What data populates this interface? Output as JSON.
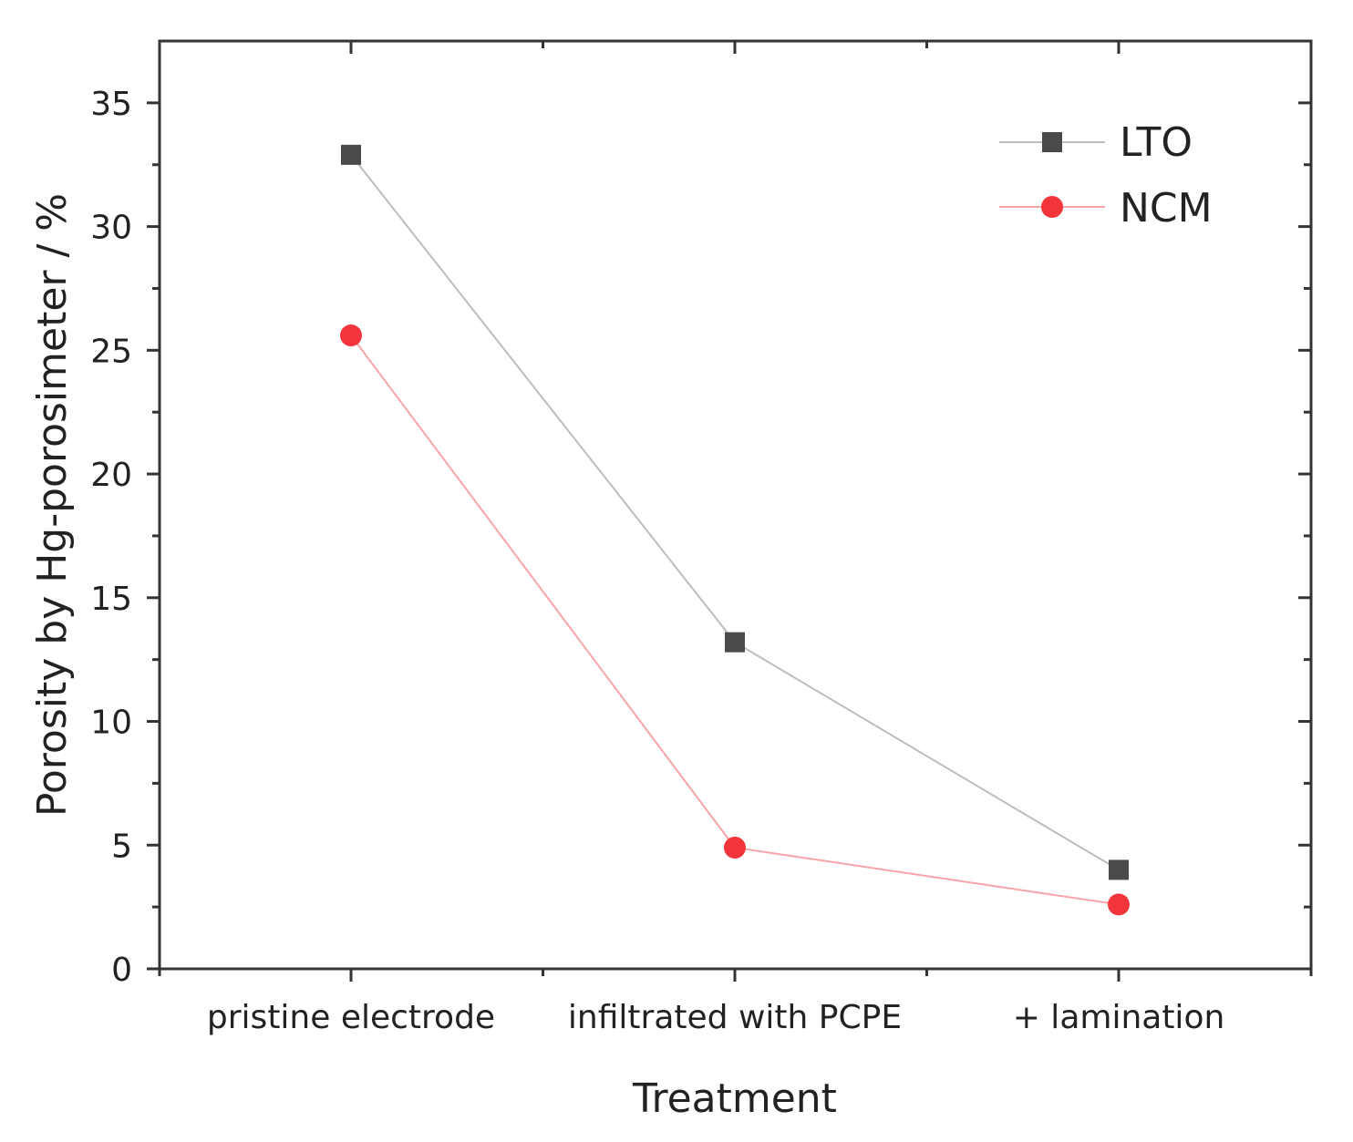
{
  "chart_data": {
    "type": "line",
    "title": "",
    "xlabel": "Treatment",
    "ylabel": "Porosity by Hg-porosimeter / %",
    "categories": [
      "pristine electrode",
      "infiltrated with PCPE",
      "+ lamination"
    ],
    "ylim": [
      0,
      37.5
    ],
    "yticks": [
      "0",
      "5",
      "10",
      "15",
      "20",
      "25",
      "30",
      "35"
    ],
    "grid": false,
    "legend_position": "top-right",
    "series": [
      {
        "name": "LTO",
        "marker": "square",
        "color": "#4a4a4a",
        "line_color": "#bdbdbd",
        "values": [
          32.9,
          13.2,
          4.0
        ]
      },
      {
        "name": "NCM",
        "marker": "circle",
        "color": "#f2353a",
        "line_color": "#f7a5a8",
        "values": [
          25.6,
          4.9,
          2.6
        ]
      }
    ]
  }
}
